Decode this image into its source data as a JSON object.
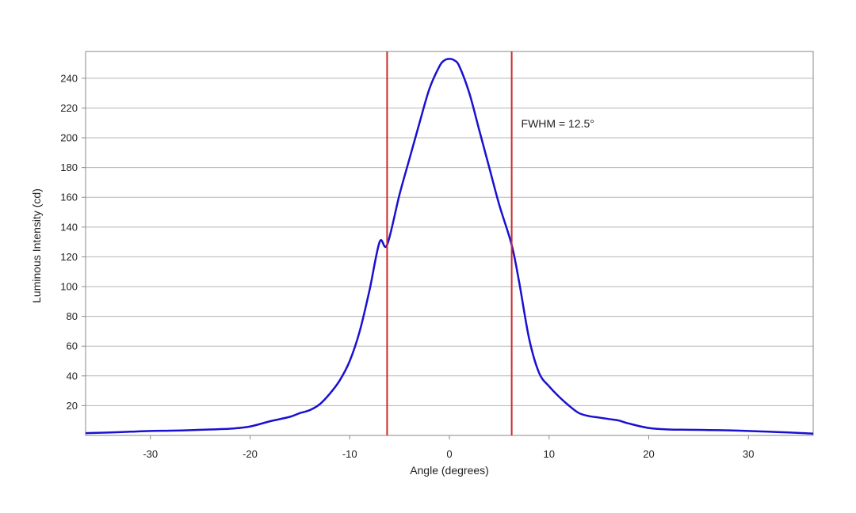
{
  "chart_data": {
    "type": "line",
    "title": "",
    "xlabel": "Angle (degrees)",
    "ylabel": "Luminous Intensity (cd)",
    "xlim": [
      -36.5,
      36.5
    ],
    "ylim": [
      0,
      258
    ],
    "x_ticks": [
      -30,
      -20,
      -10,
      0,
      10,
      20,
      30
    ],
    "y_ticks": [
      20,
      40,
      60,
      80,
      100,
      120,
      140,
      160,
      180,
      200,
      220,
      240
    ],
    "grid": "horizontal",
    "legend": "none",
    "series": [
      {
        "color": "#1a10d0",
        "x": [
          -36.5,
          -34,
          -32,
          -30,
          -28,
          -26,
          -24,
          -22,
          -20,
          -18,
          -16,
          -15,
          -14,
          -13,
          -12,
          -11,
          -10,
          -9,
          -8,
          -7,
          -6.25,
          -5,
          -4,
          -3,
          -2,
          -1,
          -0.5,
          0,
          0.5,
          1,
          2,
          3,
          4,
          5,
          6.25,
          7,
          8,
          9,
          10,
          11,
          12,
          13,
          14,
          15,
          16,
          17,
          18,
          20,
          22,
          24,
          26,
          28,
          30,
          32,
          34,
          36.5
        ],
        "y": [
          1.5,
          2,
          2.5,
          3,
          3.2,
          3.5,
          4,
          4.5,
          6,
          9.5,
          12.5,
          15,
          17,
          21,
          28,
          37,
          50,
          70,
          98,
          130,
          128,
          162,
          186,
          210,
          233,
          248,
          252,
          253,
          252,
          248,
          230,
          205,
          180,
          155,
          128,
          103,
          65,
          42,
          33,
          26,
          20,
          15,
          13,
          12,
          11,
          10,
          8,
          5,
          4,
          3.8,
          3.6,
          3.4,
          3,
          2.5,
          2,
          1.2
        ]
      }
    ],
    "markers": [
      {
        "x": -6.25,
        "color": "#cc2a2a"
      },
      {
        "x": 6.25,
        "color": "#cc2a2a"
      }
    ],
    "annotation": {
      "text": "FWHM = 12.5°",
      "x": 7.2,
      "y": 207
    }
  }
}
